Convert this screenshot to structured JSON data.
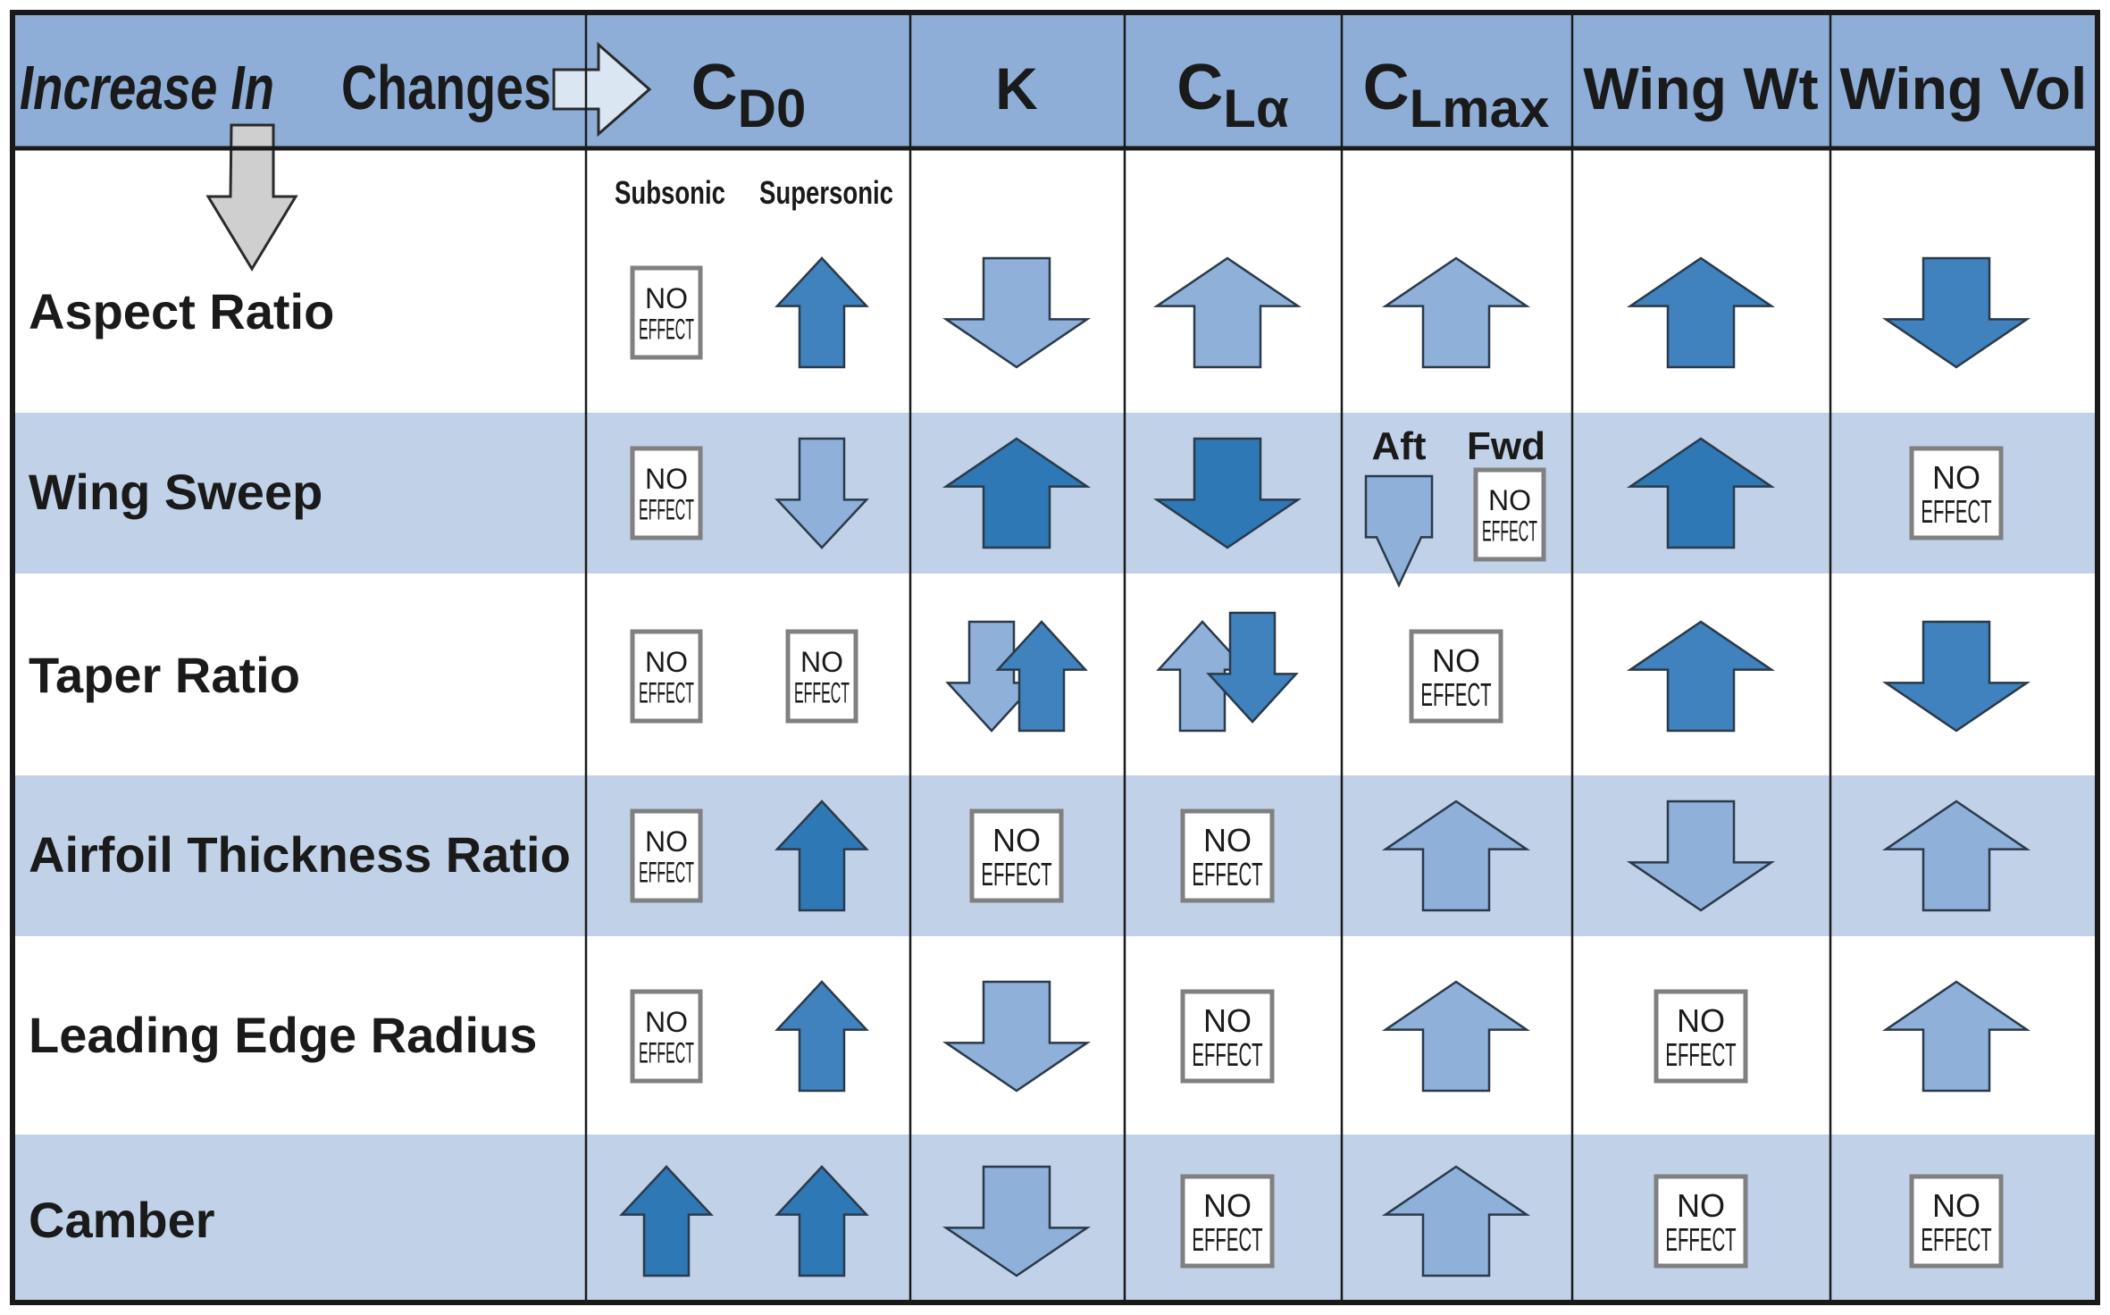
{
  "colors": {
    "header_bg": "#8eaed7",
    "band_bg": "#c0d1e8",
    "white_bg": "#ffffff",
    "border": "#1a1a1a",
    "arrow_dark": "#2e78b5",
    "arrow_mid": "#3f82bd",
    "arrow_light": "#8fb0d8",
    "noeffect_border": "#808080"
  },
  "header": {
    "increase_in": "Increase In",
    "changes": "Changes",
    "columns": [
      {
        "key": "cd0",
        "base": "C",
        "sub": "D0"
      },
      {
        "key": "k",
        "base": "K",
        "sub": ""
      },
      {
        "key": "cla",
        "base": "C",
        "sub": "Lα"
      },
      {
        "key": "clmax",
        "base": "C",
        "sub": "Lmax"
      },
      {
        "key": "wing_wt",
        "base": "Wing Wt",
        "sub": ""
      },
      {
        "key": "wing_vol",
        "base": "Wing Vol",
        "sub": ""
      }
    ],
    "subheads": {
      "subsonic": "Subsonic",
      "supersonic": "Supersonic"
    }
  },
  "no_effect": {
    "line1": "NO",
    "line2": "EFFECT"
  },
  "clmax_split": {
    "aft": "Aft",
    "fwd": "Fwd"
  },
  "rows": [
    {
      "label": "Aspect Ratio",
      "cells": {
        "cd0_subsonic": {
          "effect": "none"
        },
        "cd0_supersonic": {
          "effect": "up",
          "shade": "mid"
        },
        "k": {
          "effect": "down",
          "shade": "light"
        },
        "cla": {
          "effect": "up",
          "shade": "light"
        },
        "clmax": {
          "effect": "up",
          "shade": "light"
        },
        "wing_wt": {
          "effect": "up",
          "shade": "mid"
        },
        "wing_vol": {
          "effect": "down",
          "shade": "mid"
        }
      }
    },
    {
      "label": "Wing Sweep",
      "cells": {
        "cd0_subsonic": {
          "effect": "none"
        },
        "cd0_supersonic": {
          "effect": "down",
          "shade": "light"
        },
        "k": {
          "effect": "up",
          "shade": "dark"
        },
        "cla": {
          "effect": "down",
          "shade": "dark"
        },
        "clmax_aft": {
          "effect": "down",
          "shade": "dark"
        },
        "clmax_fwd": {
          "effect": "none"
        },
        "wing_wt": {
          "effect": "up",
          "shade": "dark"
        },
        "wing_vol": {
          "effect": "none"
        }
      }
    },
    {
      "label": "Taper Ratio",
      "cells": {
        "cd0_subsonic": {
          "effect": "none"
        },
        "cd0_supersonic": {
          "effect": "none"
        },
        "k": {
          "effect": "down-up"
        },
        "cla": {
          "effect": "up-down"
        },
        "clmax": {
          "effect": "none"
        },
        "wing_wt": {
          "effect": "up",
          "shade": "mid"
        },
        "wing_vol": {
          "effect": "down",
          "shade": "mid"
        }
      }
    },
    {
      "label": "Airfoil Thickness Ratio",
      "cells": {
        "cd0_subsonic": {
          "effect": "none"
        },
        "cd0_supersonic": {
          "effect": "up",
          "shade": "dark"
        },
        "k": {
          "effect": "none"
        },
        "cla": {
          "effect": "none"
        },
        "clmax": {
          "effect": "up",
          "shade": "light"
        },
        "wing_wt": {
          "effect": "down",
          "shade": "light"
        },
        "wing_vol": {
          "effect": "up",
          "shade": "light"
        }
      }
    },
    {
      "label": "Leading Edge Radius",
      "cells": {
        "cd0_subsonic": {
          "effect": "none"
        },
        "cd0_supersonic": {
          "effect": "up",
          "shade": "mid"
        },
        "k": {
          "effect": "down",
          "shade": "light"
        },
        "cla": {
          "effect": "none"
        },
        "clmax": {
          "effect": "up",
          "shade": "light"
        },
        "wing_wt": {
          "effect": "none"
        },
        "wing_vol": {
          "effect": "up",
          "shade": "light"
        }
      }
    },
    {
      "label": "Camber",
      "cells": {
        "cd0_subsonic": {
          "effect": "up",
          "shade": "dark"
        },
        "cd0_supersonic": {
          "effect": "up",
          "shade": "dark"
        },
        "k": {
          "effect": "down",
          "shade": "light"
        },
        "cla": {
          "effect": "none"
        },
        "clmax": {
          "effect": "up",
          "shade": "light"
        },
        "wing_wt": {
          "effect": "none"
        },
        "wing_vol": {
          "effect": "none"
        }
      }
    }
  ]
}
